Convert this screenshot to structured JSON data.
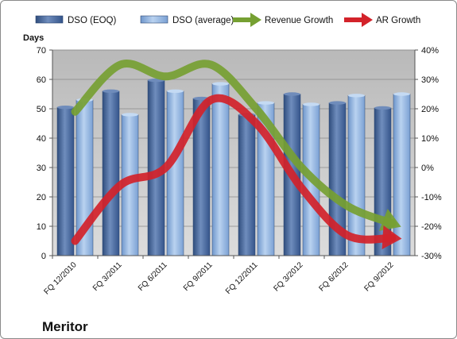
{
  "chart_data": {
    "type": "bar",
    "title": "Meritor",
    "ylabel": "Days",
    "categories": [
      "FQ 12/2010",
      "FQ 3/2011",
      "FQ 6/2011",
      "FQ 9/2011",
      "FQ 12/2011",
      "FQ 3/2012",
      "FQ 6/2012",
      "FQ 9/2012"
    ],
    "ylim": [
      0,
      70
    ],
    "yticks": [
      "0",
      "10",
      "20",
      "30",
      "40",
      "50",
      "60",
      "70"
    ],
    "y2lim": [
      -30,
      40
    ],
    "y2ticks": [
      "-30%",
      "-20%",
      "-10%",
      "0%",
      "10%",
      "20%",
      "30%",
      "40%"
    ],
    "legend_position": "top",
    "grid": true,
    "series": [
      {
        "name": "DSO (EOQ)",
        "type": "bar",
        "axis": "left",
        "color": "#4a6a9c",
        "values": [
          50.5,
          56,
          59.7,
          53.5,
          48,
          55,
          52,
          50.3
        ]
      },
      {
        "name": "DSO (average)",
        "type": "bar",
        "axis": "left",
        "color": "#8fb4e3",
        "values": [
          53,
          48,
          56,
          58.5,
          52,
          51.5,
          54.5,
          55
        ]
      },
      {
        "name": "Revenue Growth",
        "type": "line",
        "axis": "right",
        "color": "#76a032",
        "values": [
          19,
          35,
          31,
          35,
          20,
          0,
          -13,
          -19
        ]
      },
      {
        "name": "AR Growth",
        "type": "line",
        "axis": "right",
        "color": "#d3222a",
        "values": [
          -25,
          -6,
          0,
          23,
          15,
          -7,
          -23,
          -24
        ]
      }
    ]
  }
}
